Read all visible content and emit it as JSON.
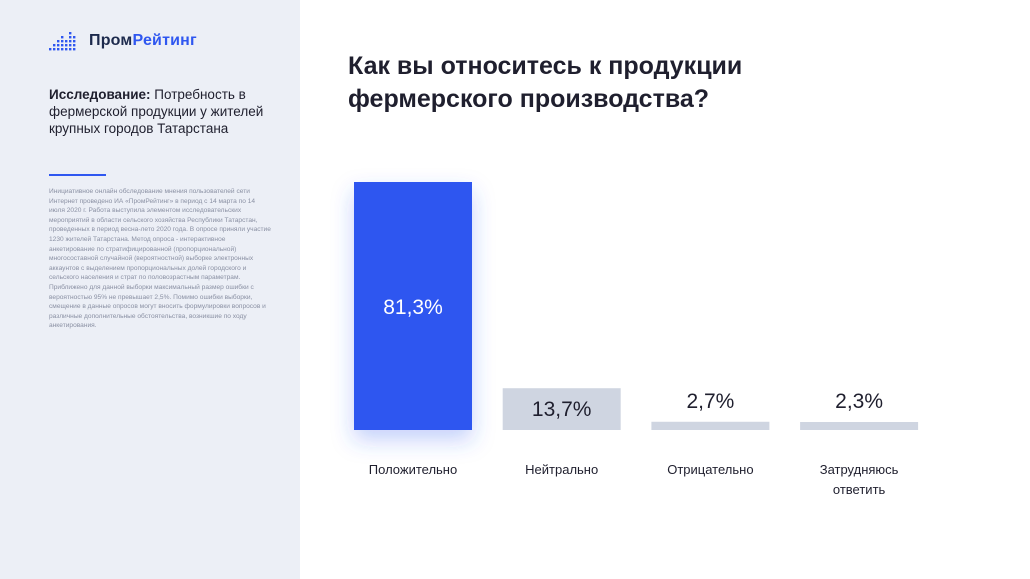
{
  "brand": {
    "name_part1": "Пром",
    "name_part2": "Рейтинг",
    "accent": "#2f57f0",
    "dark": "#1d2a4d"
  },
  "study": {
    "label": "Исследование:",
    "text": " Потребность в фермерской продукции у жителей крупных городов Татарстана"
  },
  "notes": "Инициативное онлайн обследование мнения пользователей сети Интернет проведено ИА «ПромРейтинг» в период с 14 марта по 14 июля 2020 г. Работа выступила элементом исследовательских мероприятий в области сельского хозяйства Республики Татарстан, проведенных в период весна-лето 2020 года. В опросе приняли участие 1230 жителей Татарстана. Метод опроса - интерактивное анкетирование по стратифицированной (пропорциональной) многосоставной случайной (вероятностной) выборке электронных аккаунтов с выделением пропорциональных долей городского и сельского населения и страт по половозрастным параметрам. Приближено для данной выборки максимальный размер ошибки с вероятностью 95% не превышает 2,5%. Помимо ошибки выборки, смещение в данные опросов могут вносить формулировки вопросов и различные дополнительные обстоятельства, возникшие по ходу анкетирования.",
  "chart_data": {
    "type": "bar",
    "title": "Как вы относитесь к продукции фермерского производства?",
    "categories": [
      [
        "Положительно"
      ],
      [
        "Нейтрально"
      ],
      [
        "Отрицательно"
      ],
      [
        "Затрудняюсь",
        "ответить"
      ]
    ],
    "values": [
      81.3,
      13.7,
      2.7,
      2.3
    ],
    "value_labels": [
      "81,3%",
      "13,7%",
      "2,7%",
      "2,3%"
    ],
    "ylim": [
      0,
      81.3
    ],
    "colors": {
      "highlight": "#2f57f0",
      "bar": "#cfd5e1",
      "highlight_text": "#ffffff",
      "text": "#1f1f2e"
    }
  }
}
